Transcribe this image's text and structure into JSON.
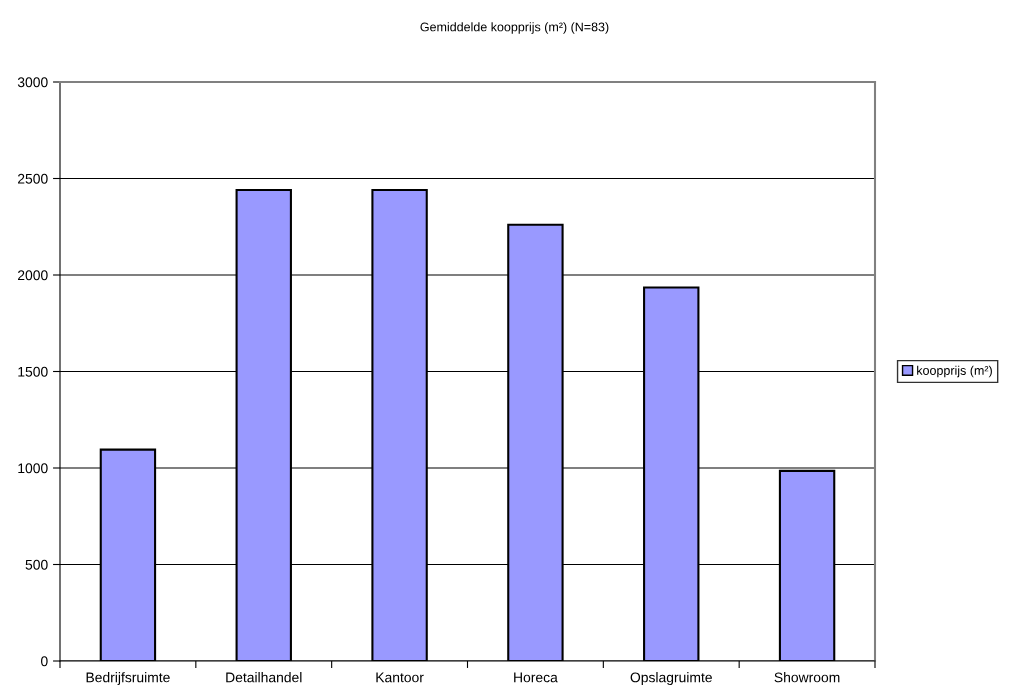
{
  "chart_data": {
    "type": "bar",
    "title": "Gemiddelde koopprijs (m²) (N=83)",
    "categories": [
      "Bedrijfsruimte",
      "Detailhandel",
      "Kantoor",
      "Horeca",
      "Opslagruimte",
      "Showroom"
    ],
    "series": [
      {
        "name": "koopprijs (m²)",
        "color": "#9999ff",
        "values": [
          1095,
          2440,
          2440,
          2260,
          1935,
          985
        ]
      }
    ],
    "ylim": [
      0,
      3000
    ],
    "yticks": [
      0,
      500,
      1000,
      1500,
      2000,
      2500,
      3000
    ],
    "grid": "y",
    "legend": "right"
  }
}
